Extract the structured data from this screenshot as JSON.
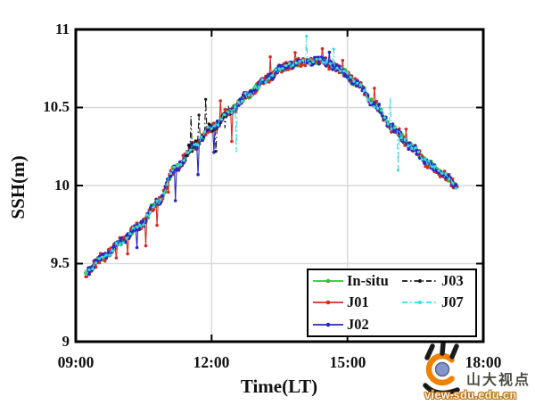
{
  "chart_data": {
    "type": "line",
    "title": "",
    "xlabel": "Time(LT)",
    "ylabel": "SSH(m)",
    "x_axis": {
      "ticks": [
        "09:00",
        "12:00",
        "15:00",
        "18:00"
      ],
      "hours": [
        9,
        12,
        15,
        18
      ],
      "range_hours": [
        9,
        18
      ]
    },
    "y_axis": {
      "ticks": [
        "9",
        "9.5",
        "10",
        "10.5",
        "11"
      ],
      "values": [
        9,
        9.5,
        10,
        10.5,
        11
      ],
      "range": [
        9,
        11
      ]
    },
    "grid": {
      "x_hours": [
        12,
        15
      ],
      "y_values": [
        9.5,
        10,
        10.5
      ],
      "color": "#d9d9d9",
      "on": true
    },
    "axis_color": "#000000",
    "curve": {
      "comment": "shared tidal SSH curve (time in LT hours, SSH in m) that all five series follow",
      "t": [
        9.2,
        9.6,
        10.0,
        10.4,
        10.8,
        11.2,
        11.6,
        12.0,
        12.4,
        12.8,
        13.2,
        13.6,
        14.0,
        14.4,
        14.8,
        15.2,
        15.6,
        16.0,
        16.4,
        16.8,
        17.1,
        17.42
      ],
      "ssh": [
        9.44,
        9.54,
        9.64,
        9.74,
        9.89,
        10.11,
        10.25,
        10.37,
        10.48,
        10.58,
        10.68,
        10.76,
        10.79,
        10.8,
        10.75,
        10.66,
        10.52,
        10.37,
        10.25,
        10.14,
        10.07,
        10.0
      ]
    },
    "series": [
      {
        "name": "In-situ",
        "color": "#28c832",
        "style": "solid",
        "marker": "dot",
        "marker_r": 2.2,
        "jitter": 0.02,
        "seed": 11,
        "t_start": 9.22,
        "t_end": 17.42,
        "spikes": []
      },
      {
        "name": "J01",
        "color": "#d42c24",
        "style": "solid",
        "marker": "dot",
        "marker_r": 1.8,
        "jitter": 0.03,
        "seed": 23,
        "t_start": 9.22,
        "t_end": 17.42,
        "spikes": [
          {
            "t": 9.9,
            "dv": -0.1
          },
          {
            "t": 10.15,
            "dv": -0.09
          },
          {
            "t": 10.55,
            "dv": -0.14
          },
          {
            "t": 10.8,
            "dv": -0.12
          },
          {
            "t": 11.05,
            "dv": -0.1
          },
          {
            "t": 12.2,
            "dv": 0.1
          },
          {
            "t": 12.45,
            "dv": -0.2
          },
          {
            "t": 13.3,
            "dv": 0.12
          },
          {
            "t": 13.85,
            "dv": 0.1
          },
          {
            "t": 14.45,
            "dv": 0.1
          },
          {
            "t": 14.9,
            "dv": 0.09
          },
          {
            "t": 15.6,
            "dv": 0.08
          },
          {
            "t": 16.3,
            "dv": 0.09
          }
        ]
      },
      {
        "name": "J02",
        "color": "#2828c0",
        "style": "solid",
        "marker": "dot",
        "marker_r": 1.8,
        "jitter": 0.024,
        "seed": 37,
        "t_start": 9.25,
        "t_end": 17.4,
        "spikes": [
          {
            "t": 10.35,
            "dv": -0.12
          },
          {
            "t": 11.2,
            "dv": -0.2
          },
          {
            "t": 11.7,
            "dv": -0.18
          },
          {
            "t": 12.05,
            "dv": -0.16
          },
          {
            "t": 14.6,
            "dv": 0.06
          }
        ]
      },
      {
        "name": "J03",
        "color": "#161616",
        "style": "dashdot",
        "marker": "dot",
        "marker_r": 1.6,
        "jitter": 0.035,
        "seed": 53,
        "t_start": 11.42,
        "t_end": 12.45,
        "spikes": [
          {
            "t": 11.55,
            "dv": 0.2
          },
          {
            "t": 11.72,
            "dv": 0.16
          },
          {
            "t": 11.88,
            "dv": 0.24
          },
          {
            "t": 12.1,
            "dv": -0.14
          },
          {
            "t": 12.3,
            "dv": -0.12
          }
        ]
      },
      {
        "name": "J07",
        "color": "#3cdcdc",
        "style": "dashdot",
        "marker": "dot",
        "marker_r": 1.6,
        "jitter": 0.02,
        "seed": 71,
        "t_start": 9.22,
        "t_end": 17.42,
        "spikes": [
          {
            "t": 12.55,
            "dv": -0.3
          },
          {
            "t": 14.1,
            "dv": 0.18
          },
          {
            "t": 14.7,
            "dv": 0.13
          },
          {
            "t": 15.95,
            "dv": 0.2
          },
          {
            "t": 16.12,
            "dv": -0.26
          }
        ]
      }
    ],
    "legend": {
      "position": "bottom-right",
      "columns": 2,
      "order": [
        "In-situ",
        "J01",
        "J02",
        "J03",
        "J07"
      ]
    }
  },
  "watermark": {
    "site_name": "山大视点",
    "site_url": "view.sdu.edu.cn",
    "logo": "eye-logo",
    "colors": {
      "ring": "#ef8200",
      "pupil": "#8494cc",
      "pupil_edge": "#5a6488",
      "lash": "#1a1a1a",
      "name_text": "#4b4b41"
    }
  }
}
